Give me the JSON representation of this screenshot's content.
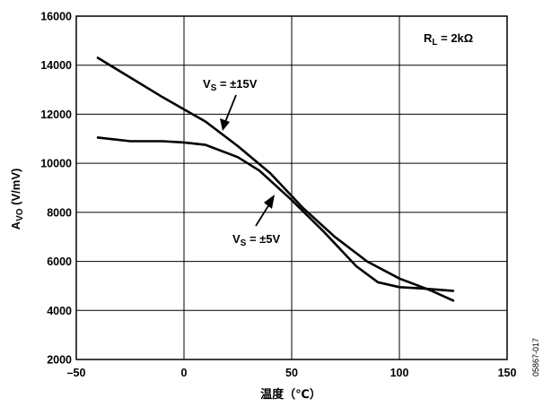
{
  "chart_data": {
    "type": "line",
    "xlabel": "温度（℃）",
    "ylabel_main": "A",
    "ylabel_sub": "VO",
    "ylabel_unit": " (V/mV)",
    "xlim": [
      -50,
      150
    ],
    "ylim": [
      2000,
      16000
    ],
    "x_ticks": [
      -50,
      0,
      50,
      100,
      150
    ],
    "x_tick_labels": [
      "–50",
      "0",
      "50",
      "100",
      "150"
    ],
    "y_ticks": [
      2000,
      4000,
      6000,
      8000,
      10000,
      12000,
      14000,
      16000
    ],
    "y_tick_labels": [
      "2000",
      "4000",
      "6000",
      "8000",
      "10000",
      "12000",
      "14000",
      "16000"
    ],
    "grid": true,
    "series": [
      {
        "name": "VS = ±15V",
        "x": [
          -40,
          -25,
          -10,
          0,
          10,
          25,
          40,
          55,
          70,
          85,
          100,
          115,
          125
        ],
        "y": [
          14300,
          13500,
          12700,
          12200,
          11700,
          10700,
          9600,
          8200,
          7000,
          6000,
          5300,
          4800,
          4400
        ]
      },
      {
        "name": "VS = ±5V",
        "x": [
          -40,
          -25,
          -10,
          0,
          10,
          25,
          35,
          50,
          65,
          80,
          90,
          100,
          110,
          125
        ],
        "y": [
          11050,
          10900,
          10900,
          10850,
          10750,
          10250,
          9700,
          8500,
          7200,
          5800,
          5150,
          4950,
          4900,
          4800
        ]
      }
    ],
    "annotations": {
      "vs15": {
        "main": "V",
        "sub": "S",
        "rest": " = ±15V"
      },
      "vs5": {
        "main": "V",
        "sub": "S",
        "rest": " = ±5V"
      },
      "rl": {
        "main": "R",
        "sub": "L",
        "rest": " = 2kΩ"
      }
    },
    "figure_id": "05867-017"
  }
}
